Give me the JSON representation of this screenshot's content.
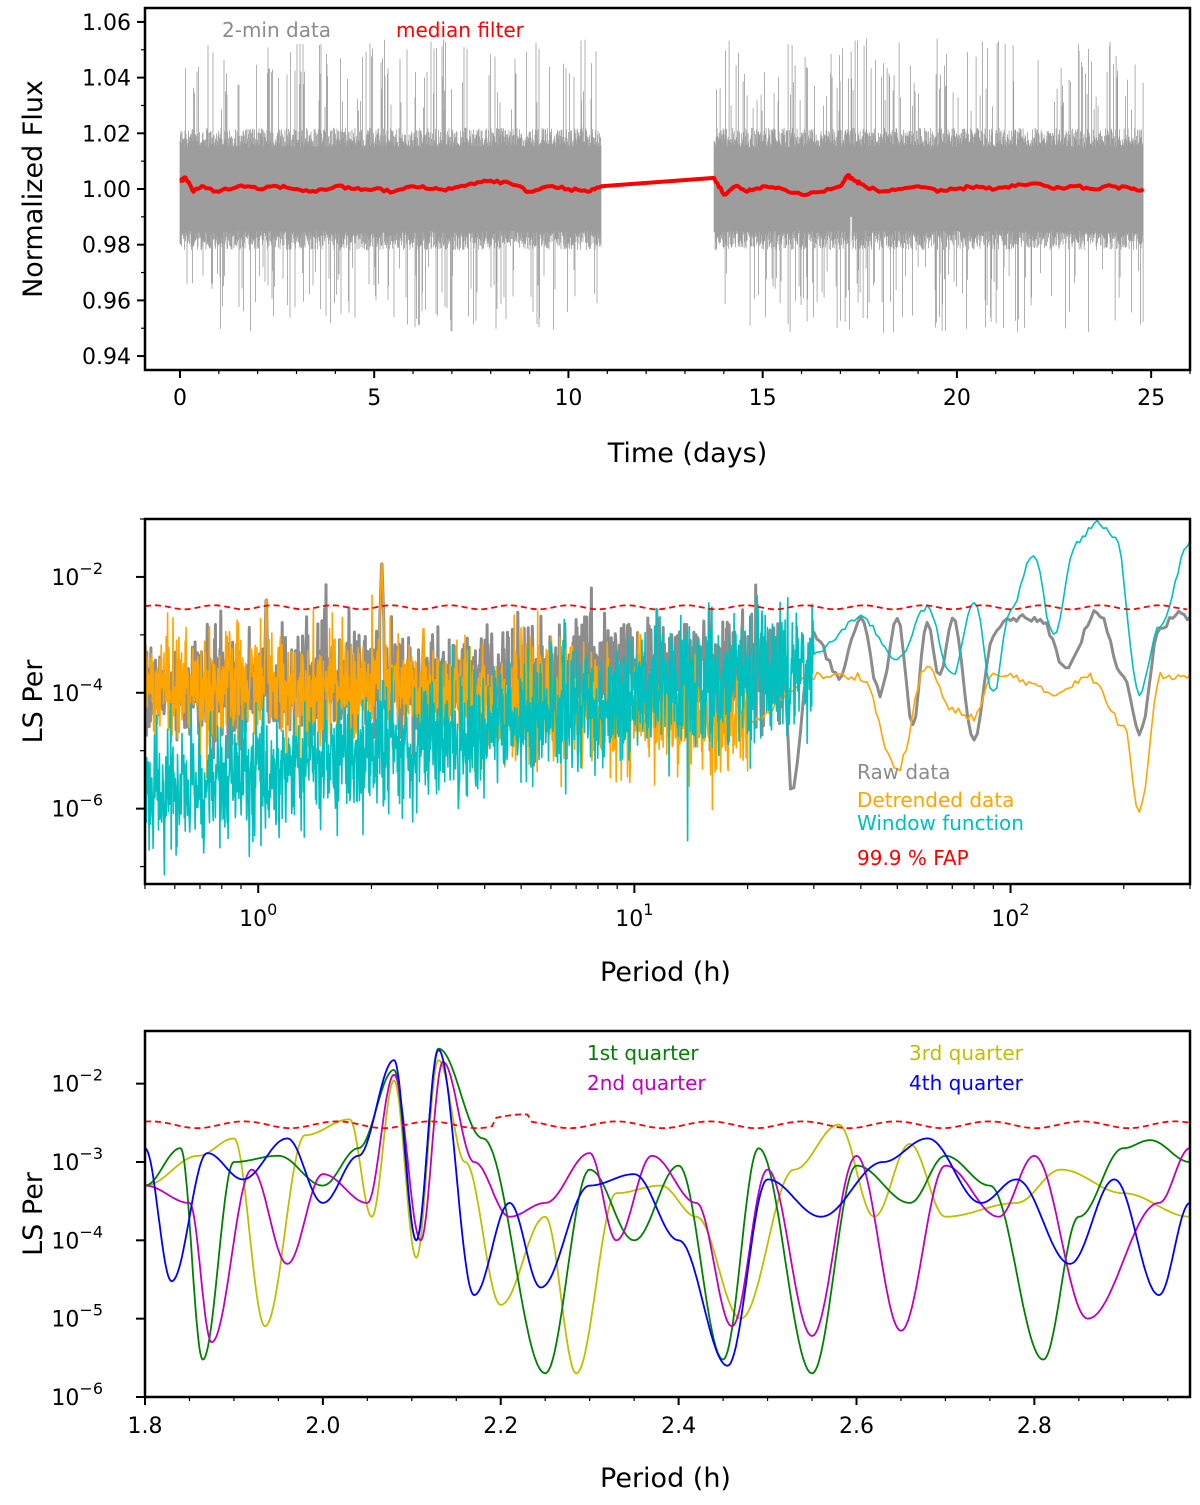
{
  "colors": {
    "raw": "#8c8c8c",
    "median": "#ff0000",
    "detrended": "#ffa500",
    "window": "#00bfbf",
    "fap": "#ff0000",
    "q1": "#008000",
    "q2": "#bf00bf",
    "q3": "#bfbf00",
    "q4": "#0000ff"
  },
  "chart_data": [
    {
      "type": "line",
      "xlabel": "Time (days)",
      "ylabel": "Normalized Flux",
      "xlim": [
        -0.9,
        26.0
      ],
      "ylim": [
        0.935,
        1.065
      ],
      "xticks": [
        0,
        5,
        10,
        15,
        20,
        25
      ],
      "yticks": [
        0.94,
        0.96,
        0.98,
        1.0,
        1.02,
        1.04,
        1.06
      ],
      "ytick_labels": [
        "0.94",
        "0.96",
        "0.98",
        "1.00",
        "1.02",
        "1.04",
        "1.06"
      ],
      "legend": {
        "placement": "top-left",
        "entries": [
          {
            "label": "2-min data",
            "color": "#8c8c8c"
          },
          {
            "label": "median filter",
            "color": "#ff0000"
          }
        ]
      },
      "segments": [
        [
          0.0,
          10.85
        ],
        [
          13.75,
          24.8
        ]
      ],
      "raw_band": {
        "center": 1.0,
        "core_halfwidth": 0.02,
        "spike_low": 0.948,
        "spike_high": 1.055
      },
      "series": [
        {
          "name": "median filter",
          "x": [
            0.0,
            0.15,
            0.35,
            0.6,
            1.0,
            1.5,
            2.0,
            2.5,
            3.0,
            3.5,
            4.0,
            4.5,
            5.0,
            5.5,
            6.0,
            6.5,
            7.0,
            7.5,
            8.0,
            8.5,
            9.0,
            9.5,
            10.0,
            10.5,
            10.85,
            13.75,
            14.0,
            14.3,
            14.6,
            15.0,
            15.5,
            16.0,
            16.5,
            17.0,
            17.2,
            17.35,
            17.5,
            18.0,
            18.5,
            19.0,
            19.5,
            20.0,
            20.5,
            21.0,
            21.5,
            22.0,
            22.5,
            23.0,
            23.5,
            24.0,
            24.5,
            24.8
          ],
          "y": [
            1.003,
            1.004,
            0.999,
            1.001,
            0.999,
            1.001,
            1.0,
            1.001,
            1.0,
            0.999,
            1.001,
            1.0,
            1.0,
            0.999,
            1.001,
            1.0,
            1.0,
            1.002,
            1.003,
            1.002,
            0.999,
            1.001,
            1.0,
            0.999,
            1.001,
            1.004,
            0.998,
            1.001,
            0.999,
            1.001,
            1.0,
            0.998,
            0.999,
            1.001,
            1.005,
            1.003,
            1.002,
            0.999,
            1.0,
            1.001,
            0.999,
            1.0,
            1.001,
            1.0,
            1.001,
            1.002,
            1.0,
            1.001,
            1.0,
            1.001,
            1.0,
            1.0
          ]
        }
      ]
    },
    {
      "type": "line",
      "xlabel": "Period (h)",
      "ylabel": "LS Per",
      "xscale": "log",
      "yscale": "log",
      "xlim": [
        0.5,
        300
      ],
      "ylim": [
        5e-08,
        0.1
      ],
      "xticks_major": [
        1,
        10,
        100
      ],
      "xtick_labels": [
        {
          "base": "10",
          "exp": "0"
        },
        {
          "base": "10",
          "exp": "1"
        },
        {
          "base": "10",
          "exp": "2"
        }
      ],
      "yticks_major": [
        1e-06,
        0.0001,
        0.01
      ],
      "ytick_labels": [
        {
          "base": "10",
          "exp": "−6"
        },
        {
          "base": "10",
          "exp": "−4"
        },
        {
          "base": "10",
          "exp": "−2"
        }
      ],
      "legend": {
        "placement": "lower-right",
        "entries": [
          {
            "label": "Raw data",
            "color": "#8c8c8c"
          },
          {
            "label": "Detrended data",
            "color": "#ffa500"
          },
          {
            "label": "Window function",
            "color": "#00bfbf"
          },
          {
            "label": "99.9 % FAP",
            "color": "#ff0000"
          }
        ]
      },
      "fap_level": 0.003,
      "series": [
        {
          "name": "Raw data",
          "x": [
            0.5,
            1.0,
            1.05,
            2.0,
            2.13,
            5.0,
            10.0,
            20.0,
            26.0,
            30.0,
            35.0,
            40.0,
            45.0,
            50.0,
            55.0,
            60.0,
            65.0,
            70.0,
            80.0,
            90.0,
            100.0,
            120.0,
            140.0,
            170.0,
            200.0,
            220.0,
            250.0,
            280.0,
            300.0
          ],
          "y": [
            0.0002,
            0.0003,
            0.006,
            0.0004,
            0.022,
            0.0005,
            0.0003,
            0.0005,
            2e-06,
            0.001,
            0.0002,
            0.002,
            0.0001,
            0.002,
            3e-05,
            0.0015,
            0.0002,
            0.002,
            1.5e-05,
            0.001,
            0.002,
            0.002,
            0.0003,
            0.0025,
            0.0002,
            2e-05,
            0.0014,
            0.0025,
            0.002
          ]
        },
        {
          "name": "Detrended data",
          "x": [
            0.5,
            1.0,
            1.05,
            2.0,
            2.13,
            5.0,
            10.0,
            20.0,
            30.0,
            40.0,
            50.0,
            60.0,
            70.0,
            80.0,
            90.0,
            100.0,
            130.0,
            160.0,
            200.0,
            220.0,
            250.0,
            300.0
          ],
          "y": [
            0.0002,
            0.0003,
            0.006,
            0.0004,
            0.022,
            0.0003,
            0.0001,
            3e-05,
            0.0002,
            0.0002,
            5e-06,
            0.0003,
            5e-05,
            4e-05,
            0.0002,
            0.0002,
            0.0001,
            0.0002,
            3e-05,
            1e-06,
            0.0002,
            0.0002
          ]
        },
        {
          "name": "Window function",
          "x": [
            0.5,
            1.0,
            2.0,
            5.0,
            10.0,
            20.0,
            30.0,
            40.0,
            50.0,
            60.0,
            70.0,
            80.0,
            90.0,
            100.0,
            115.0,
            130.0,
            150.0,
            170.0,
            190.0,
            220.0,
            250.0,
            300.0
          ],
          "y": [
            5e-06,
            2e-05,
            5e-05,
            0.0001,
            0.0002,
            0.0003,
            0.0005,
            0.002,
            0.0004,
            0.003,
            0.0002,
            0.004,
            0.0001,
            0.003,
            0.025,
            0.001,
            0.04,
            0.09,
            0.05,
            0.0001,
            0.0015,
            0.04
          ]
        }
      ]
    },
    {
      "type": "line",
      "xlabel": "Period (h)",
      "ylabel": "LS Per",
      "yscale": "log",
      "xlim": [
        1.8,
        2.975
      ],
      "ylim": [
        1e-06,
        0.047
      ],
      "xticks": [
        1.8,
        2.0,
        2.2,
        2.4,
        2.6,
        2.8
      ],
      "xtick_labels": [
        "1.8",
        "2.0",
        "2.2",
        "2.4",
        "2.6",
        "2.8"
      ],
      "yticks_major": [
        1e-06,
        1e-05,
        0.0001,
        0.001,
        0.01
      ],
      "ytick_labels": [
        {
          "base": "10",
          "exp": "−6"
        },
        {
          "base": "10",
          "exp": "−5"
        },
        {
          "base": "10",
          "exp": "−4"
        },
        {
          "base": "10",
          "exp": "−3"
        },
        {
          "base": "10",
          "exp": "−2"
        }
      ],
      "legend": {
        "placement": "top",
        "entries": [
          {
            "label": "1st quarter",
            "color": "#008000"
          },
          {
            "label": "2nd quarter",
            "color": "#bf00bf"
          },
          {
            "label": "3rd quarter",
            "color": "#bfbf00"
          },
          {
            "label": "4th quarter",
            "color": "#0000ff"
          }
        ]
      },
      "fap_level": 0.003,
      "peaks": [
        2.08,
        2.13
      ],
      "series": [
        {
          "name": "1st quarter",
          "x": [
            1.8,
            1.84,
            1.865,
            1.9,
            1.95,
            2.0,
            2.04,
            2.08,
            2.105,
            2.13,
            2.18,
            2.25,
            2.3,
            2.35,
            2.4,
            2.45,
            2.49,
            2.55,
            2.6,
            2.66,
            2.7,
            2.75,
            2.81,
            2.85,
            2.9,
            2.93,
            2.975
          ],
          "y": [
            0.0005,
            0.0015,
            3e-06,
            0.001,
            0.0012,
            0.0005,
            0.0015,
            0.015,
            0.0001,
            0.028,
            0.002,
            2e-06,
            0.0008,
            0.0001,
            0.0009,
            3e-06,
            0.0015,
            2e-06,
            0.0009,
            0.0003,
            0.0012,
            0.0005,
            3e-06,
            0.0002,
            0.0015,
            0.0019,
            0.001
          ]
        },
        {
          "name": "2nd quarter",
          "x": [
            1.8,
            1.85,
            1.875,
            1.92,
            1.96,
            2.0,
            2.05,
            2.08,
            2.11,
            2.135,
            2.17,
            2.21,
            2.25,
            2.3,
            2.33,
            2.37,
            2.42,
            2.46,
            2.5,
            2.55,
            2.6,
            2.65,
            2.7,
            2.76,
            2.8,
            2.86,
            2.94,
            2.975
          ],
          "y": [
            0.0005,
            0.0003,
            5e-06,
            0.0008,
            5e-05,
            0.0007,
            0.0003,
            0.013,
            0.0001,
            0.019,
            0.001,
            0.0002,
            0.0003,
            0.0013,
            0.0001,
            0.0012,
            0.0003,
            8e-06,
            0.0008,
            6e-06,
            0.0012,
            7e-06,
            0.0009,
            0.0002,
            0.0012,
            1e-05,
            0.0003,
            0.0015
          ]
        },
        {
          "name": "3rd quarter",
          "x": [
            1.8,
            1.86,
            1.9,
            1.935,
            1.98,
            2.03,
            2.055,
            2.08,
            2.105,
            2.13,
            2.16,
            2.2,
            2.25,
            2.285,
            2.33,
            2.38,
            2.42,
            2.47,
            2.53,
            2.58,
            2.62,
            2.66,
            2.7,
            2.78,
            2.83,
            2.9,
            2.975
          ],
          "y": [
            0.0005,
            0.0012,
            0.002,
            8e-06,
            0.0022,
            0.0035,
            0.0002,
            0.011,
            6e-05,
            0.02,
            0.001,
            1.5e-05,
            0.0002,
            2e-06,
            0.0004,
            0.0005,
            0.0002,
            1e-05,
            0.0008,
            0.003,
            0.0002,
            0.0017,
            0.0002,
            0.0003,
            0.0008,
            0.0004,
            0.0002
          ]
        },
        {
          "name": "4th quarter",
          "x": [
            1.8,
            1.83,
            1.87,
            1.91,
            1.96,
            2.0,
            2.04,
            2.08,
            2.105,
            2.13,
            2.17,
            2.21,
            2.245,
            2.3,
            2.35,
            2.4,
            2.455,
            2.5,
            2.56,
            2.63,
            2.68,
            2.74,
            2.78,
            2.84,
            2.89,
            2.94,
            2.975
          ],
          "y": [
            0.0015,
            3e-05,
            0.0013,
            0.0006,
            0.002,
            0.0003,
            0.0012,
            0.02,
            0.0001,
            0.027,
            2e-05,
            0.0003,
            2.5e-05,
            0.0005,
            0.0007,
            0.0001,
            2.5e-06,
            0.0006,
            0.0002,
            0.001,
            0.002,
            0.0003,
            0.0006,
            5e-05,
            0.0006,
            2e-05,
            0.0003
          ]
        }
      ]
    }
  ]
}
